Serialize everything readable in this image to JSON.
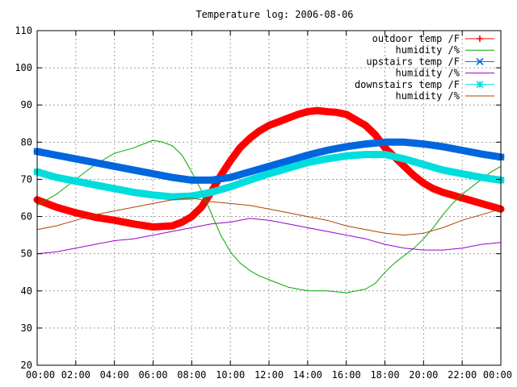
{
  "chart_data": {
    "type": "line",
    "title": "Temperature log: 2006-08-06",
    "xlabel": "",
    "ylabel": "",
    "xlim": [
      0,
      24
    ],
    "ylim": [
      20,
      110
    ],
    "grid": true,
    "legend_position": "top-right",
    "x_ticks": [
      "00:00",
      "02:00",
      "04:00",
      "06:00",
      "08:00",
      "10:00",
      "12:00",
      "14:00",
      "16:00",
      "18:00",
      "20:00",
      "22:00",
      "00:00"
    ],
    "y_ticks": [
      "20",
      "30",
      "40",
      "50",
      "60",
      "70",
      "80",
      "90",
      "100",
      "110"
    ],
    "series": [
      {
        "name": "outdoor temp /F",
        "color": "#ff0000",
        "marker": "plus",
        "points": [
          [
            0,
            64.5
          ],
          [
            1,
            62.5
          ],
          [
            2,
            61
          ],
          [
            3,
            59.8
          ],
          [
            4,
            59
          ],
          [
            5,
            58
          ],
          [
            6,
            57.2
          ],
          [
            7,
            57.5
          ],
          [
            7.5,
            58.5
          ],
          [
            8,
            60
          ],
          [
            8.5,
            62.5
          ],
          [
            9,
            66.5
          ],
          [
            9.5,
            71
          ],
          [
            10,
            75
          ],
          [
            10.5,
            78.5
          ],
          [
            11,
            81
          ],
          [
            11.5,
            83
          ],
          [
            12,
            84.5
          ],
          [
            12.5,
            85.5
          ],
          [
            13,
            86.5
          ],
          [
            13.5,
            87.5
          ],
          [
            14,
            88.2
          ],
          [
            14.5,
            88.5
          ],
          [
            15,
            88.2
          ],
          [
            15.5,
            88
          ],
          [
            16,
            87.5
          ],
          [
            16.5,
            86
          ],
          [
            17,
            84.5
          ],
          [
            17.5,
            82
          ],
          [
            18,
            78.5
          ],
          [
            18.5,
            76
          ],
          [
            19,
            73.5
          ],
          [
            19.5,
            71
          ],
          [
            20,
            69
          ],
          [
            20.5,
            67.5
          ],
          [
            21,
            66.5
          ],
          [
            22,
            65
          ],
          [
            23,
            63.5
          ],
          [
            24,
            62
          ]
        ]
      },
      {
        "name": "humidity /%",
        "color": "#00aa00",
        "marker": "line",
        "points": [
          [
            0,
            63
          ],
          [
            1,
            66
          ],
          [
            2,
            70
          ],
          [
            3,
            74
          ],
          [
            4,
            77
          ],
          [
            5,
            78.5
          ],
          [
            5.5,
            79.5
          ],
          [
            6,
            80.5
          ],
          [
            6.5,
            80
          ],
          [
            7,
            79
          ],
          [
            7.5,
            76.5
          ],
          [
            8,
            72
          ],
          [
            8.5,
            67
          ],
          [
            9,
            61
          ],
          [
            9.5,
            55
          ],
          [
            10,
            50.5
          ],
          [
            10.5,
            47.5
          ],
          [
            11,
            45.5
          ],
          [
            11.5,
            44
          ],
          [
            12,
            43
          ],
          [
            12.5,
            42
          ],
          [
            13,
            41
          ],
          [
            13.5,
            40.5
          ],
          [
            14,
            40
          ],
          [
            15,
            40
          ],
          [
            16,
            39.5
          ],
          [
            17,
            40.5
          ],
          [
            17.5,
            42
          ],
          [
            18,
            45
          ],
          [
            18.5,
            47.5
          ],
          [
            19,
            49.5
          ],
          [
            19.5,
            51.5
          ],
          [
            20,
            54
          ],
          [
            20.5,
            57
          ],
          [
            21,
            60.5
          ],
          [
            21.5,
            63.5
          ],
          [
            22,
            66
          ],
          [
            22.5,
            68
          ],
          [
            23,
            70
          ],
          [
            23.5,
            72
          ],
          [
            24,
            73.5
          ]
        ]
      },
      {
        "name": "upstairs temp /F",
        "color": "#0066dd",
        "marker": "cross",
        "points": [
          [
            0,
            77.5
          ],
          [
            1,
            76.5
          ],
          [
            2,
            75.5
          ],
          [
            3,
            74.5
          ],
          [
            4,
            73.5
          ],
          [
            5,
            72.5
          ],
          [
            6,
            71.5
          ],
          [
            7,
            70.5
          ],
          [
            8,
            69.8
          ],
          [
            9,
            69.8
          ],
          [
            10,
            70.5
          ],
          [
            11,
            72
          ],
          [
            12,
            73.5
          ],
          [
            13,
            75
          ],
          [
            14,
            76.5
          ],
          [
            15,
            77.8
          ],
          [
            16,
            78.8
          ],
          [
            17,
            79.5
          ],
          [
            18,
            80
          ],
          [
            19,
            80
          ],
          [
            20,
            79.5
          ],
          [
            21,
            78.8
          ],
          [
            22,
            77.8
          ],
          [
            23,
            76.8
          ],
          [
            24,
            76
          ]
        ]
      },
      {
        "name": "humidity /%",
        "color": "#9900cc",
        "marker": "line",
        "points": [
          [
            0,
            50
          ],
          [
            1,
            50.5
          ],
          [
            2,
            51.5
          ],
          [
            3,
            52.5
          ],
          [
            4,
            53.5
          ],
          [
            5,
            54
          ],
          [
            6,
            55
          ],
          [
            7,
            56
          ],
          [
            8,
            57
          ],
          [
            9,
            58
          ],
          [
            10,
            58.5
          ],
          [
            11,
            59.5
          ],
          [
            12,
            59
          ],
          [
            13,
            58
          ],
          [
            14,
            57
          ],
          [
            15,
            56
          ],
          [
            16,
            55
          ],
          [
            17,
            54
          ],
          [
            18,
            52.5
          ],
          [
            19,
            51.5
          ],
          [
            20,
            51
          ],
          [
            21,
            51
          ],
          [
            22,
            51.5
          ],
          [
            23,
            52.5
          ],
          [
            24,
            53
          ]
        ]
      },
      {
        "name": "downstairs temp /F",
        "color": "#00dddd",
        "marker": "star",
        "points": [
          [
            0,
            72
          ],
          [
            1,
            70.5
          ],
          [
            2,
            69.5
          ],
          [
            3,
            68.5
          ],
          [
            4,
            67.5
          ],
          [
            5,
            66.5
          ],
          [
            6,
            65.8
          ],
          [
            7,
            65.3
          ],
          [
            8,
            65.5
          ],
          [
            9,
            66.5
          ],
          [
            10,
            68
          ],
          [
            11,
            69.8
          ],
          [
            12,
            71.5
          ],
          [
            13,
            73
          ],
          [
            14,
            74.5
          ],
          [
            15,
            75.5
          ],
          [
            16,
            76.3
          ],
          [
            17,
            76.7
          ],
          [
            18,
            76.7
          ],
          [
            19,
            75.5
          ],
          [
            20,
            74
          ],
          [
            21,
            72.5
          ],
          [
            22,
            71.5
          ],
          [
            23,
            70.5
          ],
          [
            24,
            69.8
          ]
        ]
      },
      {
        "name": "humidity /%",
        "color": "#aa4400",
        "marker": "line",
        "points": [
          [
            0,
            56.5
          ],
          [
            1,
            57.5
          ],
          [
            2,
            59
          ],
          [
            3,
            60.5
          ],
          [
            4,
            61.5
          ],
          [
            5,
            62.5
          ],
          [
            6,
            63.5
          ],
          [
            7,
            64.5
          ],
          [
            8,
            65
          ],
          [
            9,
            64
          ],
          [
            10,
            63.5
          ],
          [
            11,
            63
          ],
          [
            12,
            62
          ],
          [
            13,
            61
          ],
          [
            14,
            60
          ],
          [
            15,
            59
          ],
          [
            16,
            57.5
          ],
          [
            17,
            56.5
          ],
          [
            18,
            55.5
          ],
          [
            19,
            55
          ],
          [
            20,
            55.5
          ],
          [
            21,
            57
          ],
          [
            22,
            59
          ],
          [
            23,
            60.5
          ],
          [
            24,
            62
          ]
        ]
      }
    ]
  }
}
